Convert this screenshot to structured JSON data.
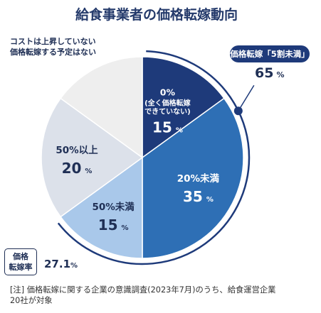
{
  "chart_data": {
    "type": "pie",
    "title": "給食事業者の価格転嫁動向",
    "slices": [
      {
        "label_lines": [
          "0%",
          "(全く価格転嫁",
          "できていない)"
        ],
        "value": 15,
        "value_text": "15",
        "unit": "%",
        "color": "#1e3a7a",
        "text_color": "#ffffff"
      },
      {
        "label_lines": [
          "20%未満"
        ],
        "value": 35,
        "value_text": "35",
        "unit": "%",
        "color": "#2e6fb5",
        "text_color": "#ffffff"
      },
      {
        "label_lines": [
          "50%未満"
        ],
        "value": 15,
        "value_text": "15",
        "unit": "%",
        "color": "#a9c8ea",
        "text_color": "#1f2f55"
      },
      {
        "label_lines": [
          "50%以上"
        ],
        "value": 20,
        "value_text": "20",
        "unit": "%",
        "color": "#dce1ea",
        "text_color": "#1f2f55"
      },
      {
        "label_lines": [
          "コストは上昇していない",
          "価格転嫁する予定はない"
        ],
        "value": 15,
        "value_text": "",
        "unit": "",
        "color": "#eeeeee",
        "text_color": "#1f2f55"
      }
    ],
    "callout": {
      "label": "価格転嫁「5割未満」",
      "value": "65",
      "unit": "%"
    },
    "rate": {
      "label_lines": [
        "価格",
        "転嫁率"
      ],
      "value": "27.1",
      "unit": "%"
    }
  },
  "footnote_lines": [
    "[注] 価格転嫁に関する企業の意識調査(2023年7月)のうち、給食運営企業",
    "20社が対象"
  ]
}
